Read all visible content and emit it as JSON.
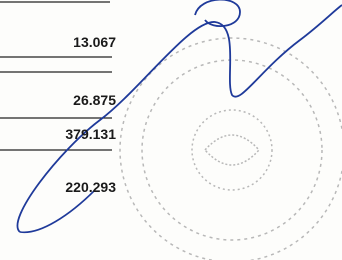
{
  "rows": [
    "13.067",
    "26.875",
    "379.131",
    "220.293"
  ]
}
